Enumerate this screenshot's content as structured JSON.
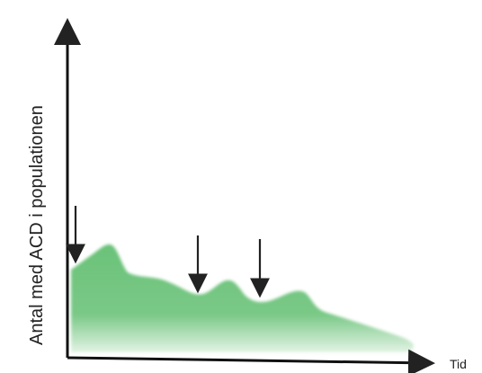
{
  "axes": {
    "y_label": "Antal med ACD i populationen",
    "x_label": "Tid"
  },
  "curve": {
    "color": "#63bf72",
    "description_shape": "irregular declining wave with three peaks"
  },
  "arrows": {
    "count": 3,
    "color": "#222222"
  }
}
